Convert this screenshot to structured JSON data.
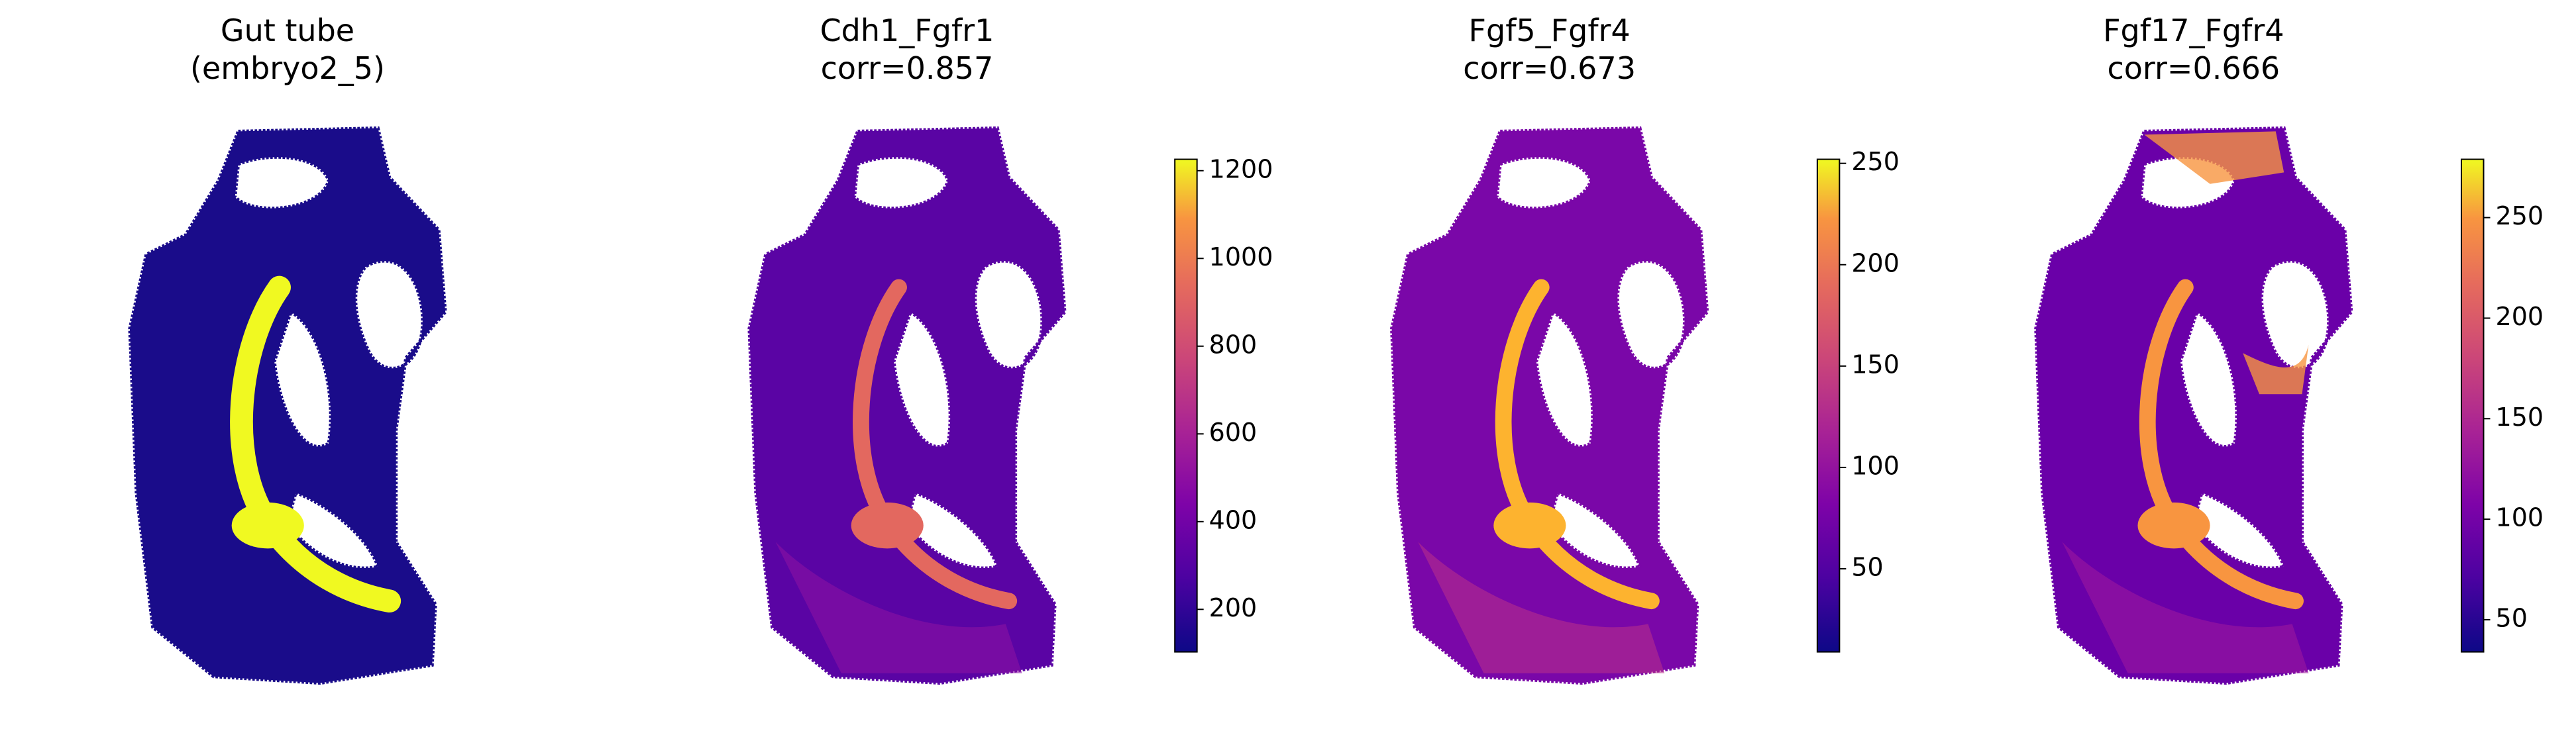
{
  "chart_data": {
    "type": "spatial-scatter",
    "colormap": "plasma",
    "panels": [
      {
        "title": "Gut tube",
        "subtitle": "(embryo2_5)"
      },
      {
        "title": "Cdh1_Fgfr1",
        "subtitle": "corr=0.857",
        "clim": [
          103,
          1226
        ],
        "ticks": [
          200,
          400,
          600,
          800,
          1000,
          1200
        ]
      },
      {
        "title": "Fgf5_Fgfr4",
        "subtitle": "corr=0.673",
        "clim": [
          9,
          252
        ],
        "ticks": [
          50,
          100,
          150,
          200,
          250
        ]
      },
      {
        "title": "Fgf17_Fgfr4",
        "subtitle": "corr=0.666",
        "clim": [
          34,
          279
        ],
        "ticks": [
          50,
          100,
          150,
          200,
          250
        ]
      }
    ]
  }
}
